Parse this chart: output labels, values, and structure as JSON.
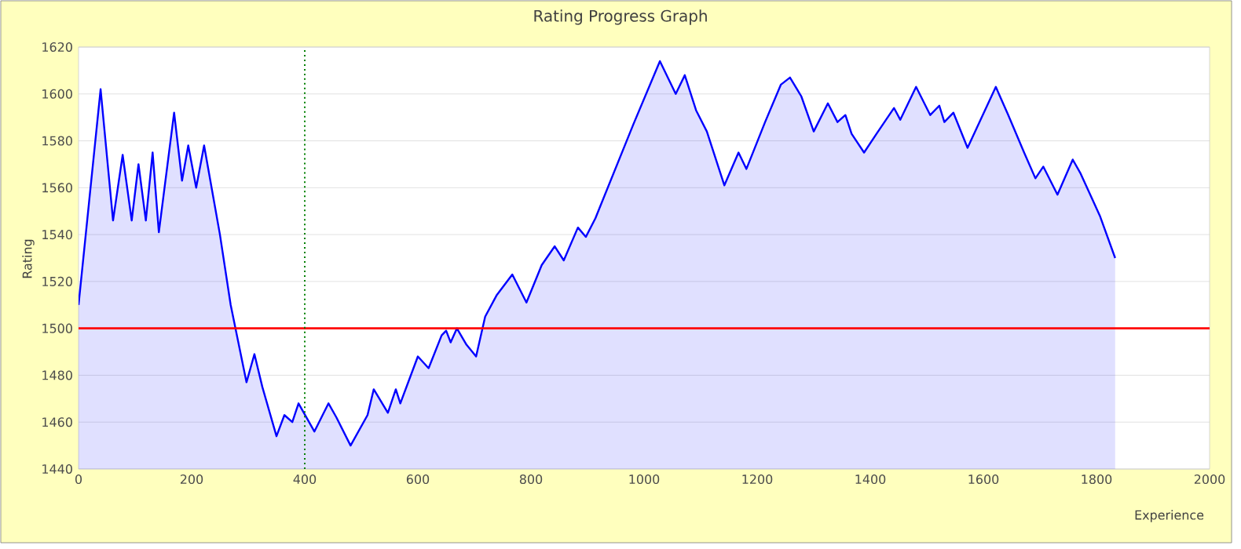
{
  "chart_data": {
    "type": "area",
    "title": "Rating Progress Graph",
    "xlabel": "Experience",
    "ylabel": "Rating",
    "xlim": [
      0,
      2000
    ],
    "xticks": [
      0,
      200,
      400,
      600,
      800,
      1000,
      1200,
      1400,
      1600,
      1800,
      2000
    ],
    "ylim": [
      1440,
      1620
    ],
    "yticks": [
      1440,
      1460,
      1480,
      1500,
      1520,
      1540,
      1560,
      1580,
      1600,
      1620
    ],
    "grid": "y",
    "ref_lines": [
      {
        "axis": "y",
        "value": 1500,
        "color": "#ff0000",
        "line_style": "solid"
      },
      {
        "axis": "x",
        "value": 400,
        "color": "#008000",
        "line_style": "dotted"
      }
    ],
    "series": [
      {
        "color": "#0000ff",
        "x": [
          0,
          39,
          61,
          78,
          94,
          106,
          119,
          131,
          142,
          169,
          183,
          194,
          208,
          222,
          250,
          269,
          297,
          311,
          325,
          350,
          364,
          378,
          389,
          417,
          442,
          456,
          481,
          511,
          522,
          547,
          561,
          569,
          600,
          619,
          642,
          650,
          658,
          669,
          686,
          703,
          719,
          739,
          767,
          792,
          819,
          842,
          858,
          883,
          897,
          914,
          981,
          1028,
          1056,
          1072,
          1092,
          1111,
          1142,
          1167,
          1181,
          1214,
          1242,
          1258,
          1278,
          1300,
          1325,
          1342,
          1356,
          1367,
          1389,
          1411,
          1442,
          1453,
          1481,
          1506,
          1522,
          1531,
          1547,
          1572,
          1622,
          1644,
          1672,
          1692,
          1706,
          1731,
          1758,
          1772,
          1806,
          1833
        ],
        "values": [
          1510,
          1602,
          1546,
          1574,
          1546,
          1570,
          1546,
          1575,
          1541,
          1592,
          1563,
          1578,
          1560,
          1578,
          1540,
          1510,
          1477,
          1489,
          1475,
          1454,
          1463,
          1460,
          1468,
          1456,
          1468,
          1462,
          1450,
          1463,
          1474,
          1464,
          1474,
          1468,
          1488,
          1483,
          1497,
          1499,
          1494,
          1500,
          1493,
          1488,
          1505,
          1514,
          1523,
          1511,
          1527,
          1535,
          1529,
          1543,
          1539,
          1547,
          1587,
          1614,
          1600,
          1608,
          1593,
          1584,
          1561,
          1575,
          1568,
          1588,
          1604,
          1607,
          1599,
          1584,
          1596,
          1588,
          1591,
          1583,
          1575,
          1583,
          1594,
          1589,
          1603,
          1591,
          1595,
          1588,
          1592,
          1577,
          1603,
          1591,
          1575,
          1564,
          1569,
          1557,
          1572,
          1566,
          1548,
          1530
        ]
      }
    ]
  }
}
